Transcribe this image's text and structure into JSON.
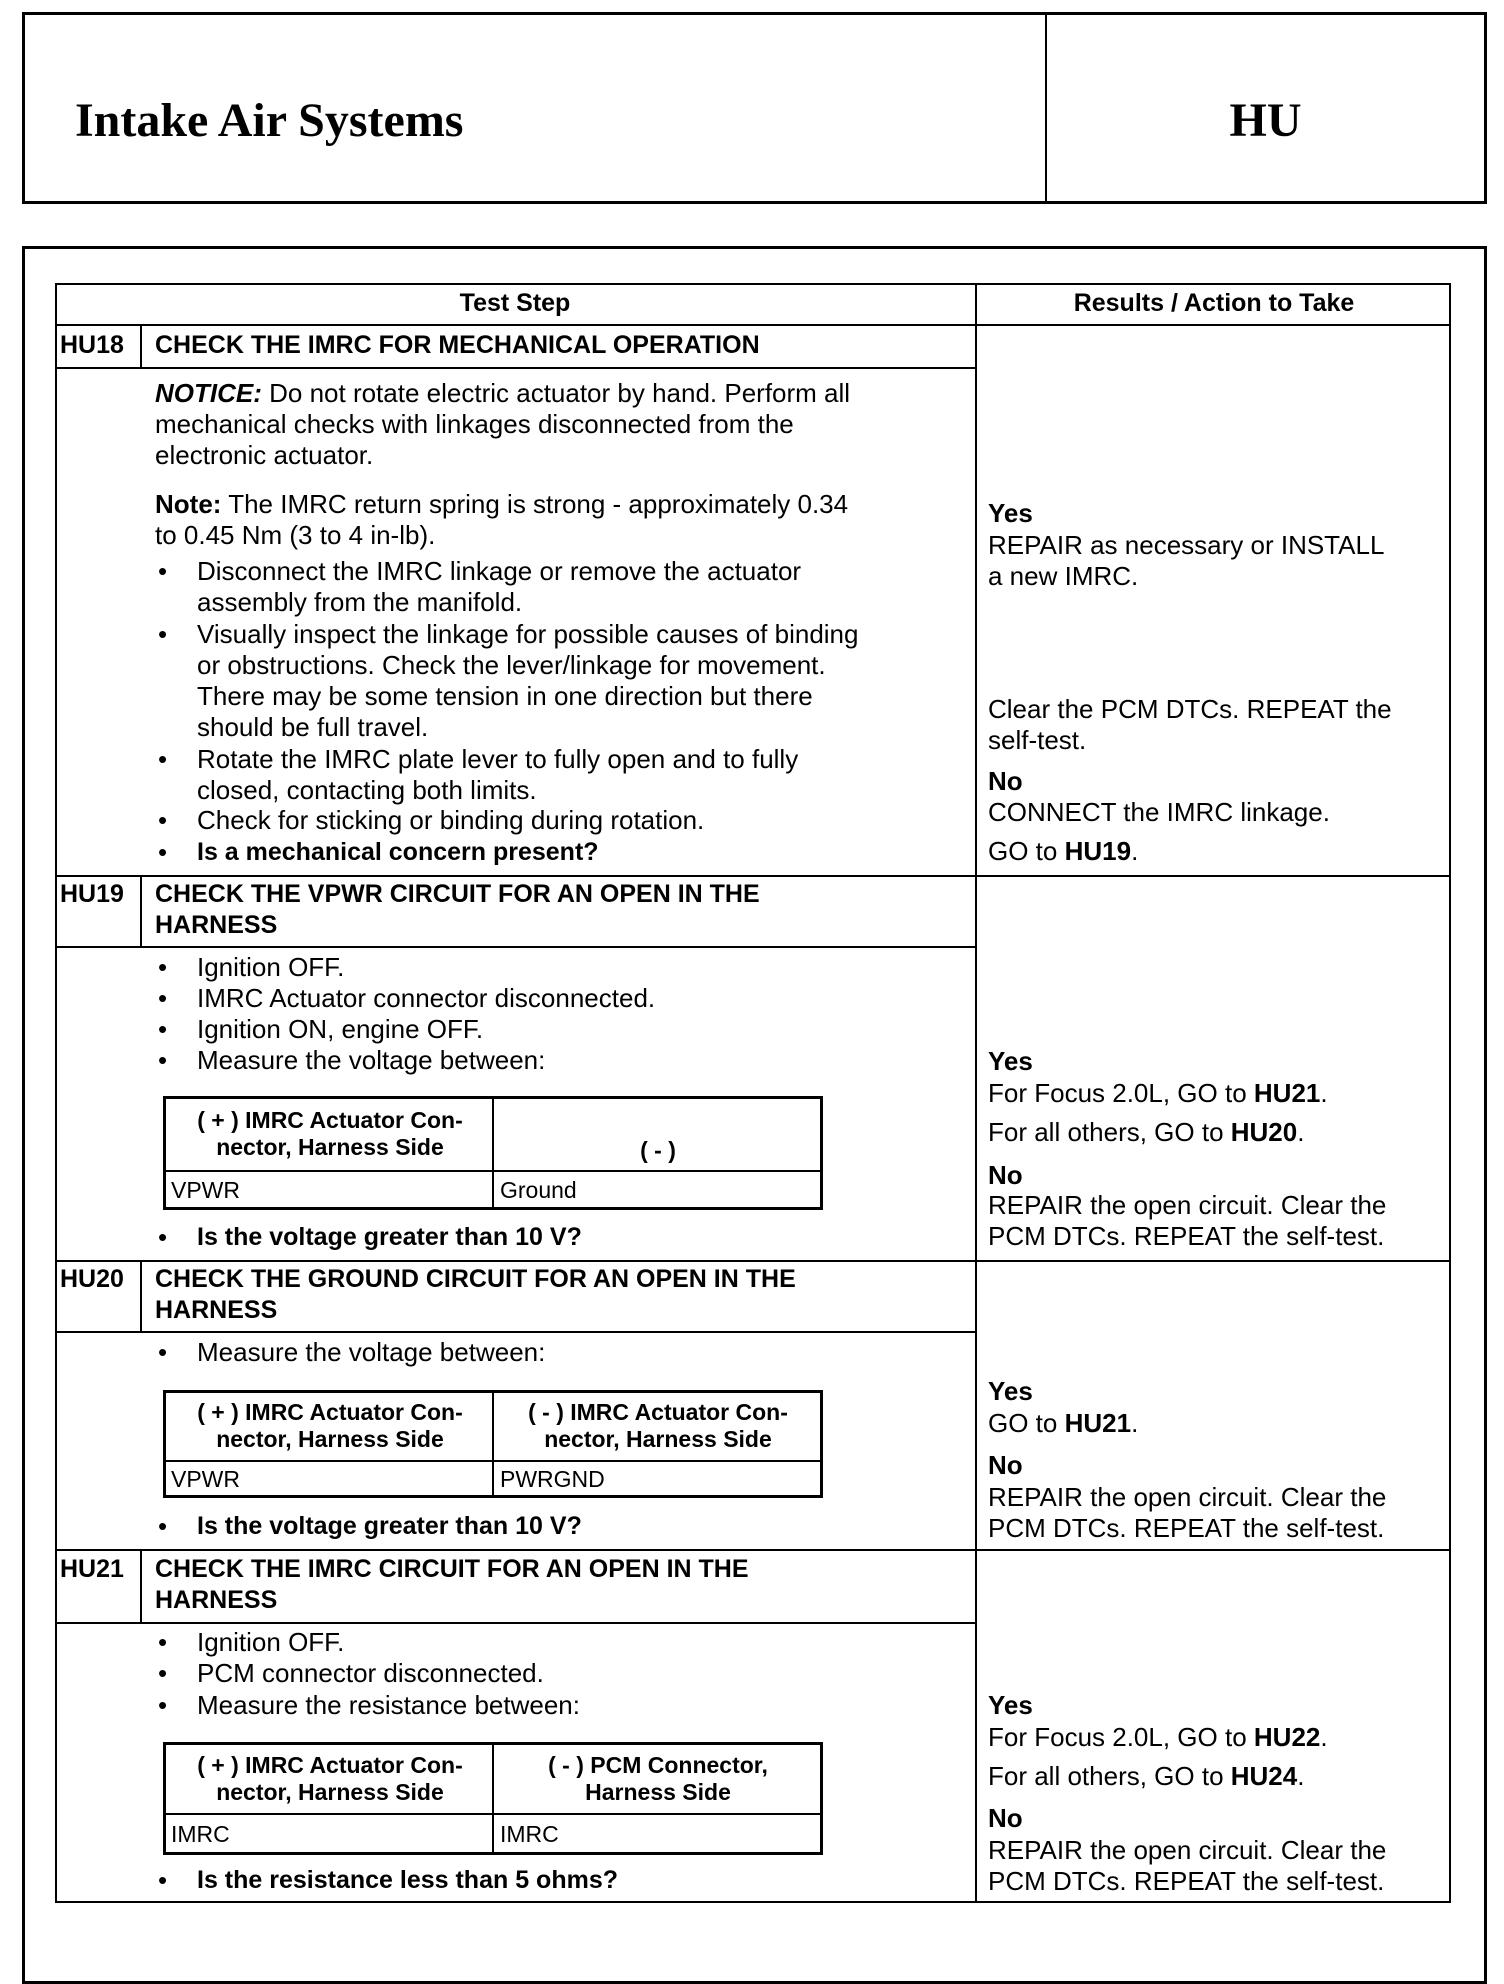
{
  "header": {
    "title": "Intake Air Systems",
    "code": "HU"
  },
  "table": {
    "col_test_step": "Test Step",
    "col_results": "Results / Action to Take"
  },
  "bullet": "•",
  "steps": [
    {
      "id": "HU18",
      "title": "CHECK THE IMRC FOR MECHANICAL OPERATION",
      "notice_label": "NOTICE:",
      "notice_text": " Do not rotate electric actuator by hand. Perform all\nmechanical checks with linkages disconnected from the\nelectronic actuator.",
      "note_label": "Note:",
      "note_text": " The IMRC return spring is strong - approximately 0.34\nto 0.45 Nm (3 to 4 in-lb).",
      "bullets": [
        "Disconnect the IMRC linkage or remove the actuator\nassembly from the manifold.",
        "Visually inspect the linkage for possible causes of binding\nor obstructions. Check the lever/linkage for movement.\nThere may be some tension in one direction but there\nshould be full travel.",
        "Rotate the IMRC plate lever to fully open and to fully\nclosed, contacting both limits.",
        "Check for sticking or binding during rotation."
      ],
      "question": "Is a mechanical concern present?",
      "yes_label": "Yes",
      "yes_text": "REPAIR as necessary or INSTALL\na new IMRC.",
      "yes_text2": "Clear the PCM DTCs. REPEAT the\nself-test.",
      "no_label": "No",
      "no_text": "CONNECT the IMRC linkage.",
      "no_goto_text": "GO to ",
      "no_goto": "HU19"
    },
    {
      "id": "HU19",
      "title": "CHECK THE VPWR CIRCUIT FOR AN OPEN IN THE\nHARNESS",
      "bullets": [
        "Ignition OFF.",
        "IMRC Actuator connector disconnected.",
        "Ignition ON, engine OFF.",
        "Measure the voltage between:"
      ],
      "meas_table": {
        "headers": [
          "( + ) IMRC Actuator Con-\nnector, Harness Side",
          "( - )"
        ],
        "row": [
          "VPWR",
          "Ground"
        ]
      },
      "question": "Is the voltage greater than 10 V?",
      "yes_label": "Yes",
      "yes_lines": [
        {
          "text": "For Focus 2.0L, GO to ",
          "goto": "HU21"
        },
        {
          "text": "For all others, GO to ",
          "goto": "HU20"
        }
      ],
      "no_label": "No",
      "no_text": "REPAIR the open circuit. Clear the\nPCM DTCs. REPEAT the self-test."
    },
    {
      "id": "HU20",
      "title": "CHECK THE GROUND CIRCUIT FOR AN OPEN IN THE\nHARNESS",
      "bullets": [
        "Measure the voltage between:"
      ],
      "meas_table": {
        "headers": [
          "( + ) IMRC Actuator Con-\nnector, Harness Side",
          "( - ) IMRC Actuator Con-\nnector, Harness Side"
        ],
        "row": [
          "VPWR",
          "PWRGND"
        ]
      },
      "question": "Is the voltage greater than 10 V?",
      "yes_label": "Yes",
      "yes_lines": [
        {
          "text": "GO to ",
          "goto": "HU21"
        }
      ],
      "no_label": "No",
      "no_text": "REPAIR the open circuit. Clear the\nPCM DTCs. REPEAT the self-test."
    },
    {
      "id": "HU21",
      "title": "CHECK THE IMRC CIRCUIT FOR AN OPEN IN THE\nHARNESS",
      "bullets": [
        "Ignition OFF.",
        "PCM connector disconnected.",
        "Measure the resistance between:"
      ],
      "meas_table": {
        "headers": [
          "( + ) IMRC Actuator Con-\nnector, Harness Side",
          "( - ) PCM Connector,\nHarness Side"
        ],
        "row": [
          "IMRC",
          "IMRC"
        ]
      },
      "question": "Is the resistance less than 5 ohms?",
      "yes_label": "Yes",
      "yes_lines": [
        {
          "text": "For Focus 2.0L, GO to ",
          "goto": "HU22"
        },
        {
          "text": "For all others, GO to ",
          "goto": "HU24"
        }
      ],
      "no_label": "No",
      "no_text": "REPAIR the open circuit. Clear the\nPCM DTCs. REPEAT the self-test."
    }
  ]
}
